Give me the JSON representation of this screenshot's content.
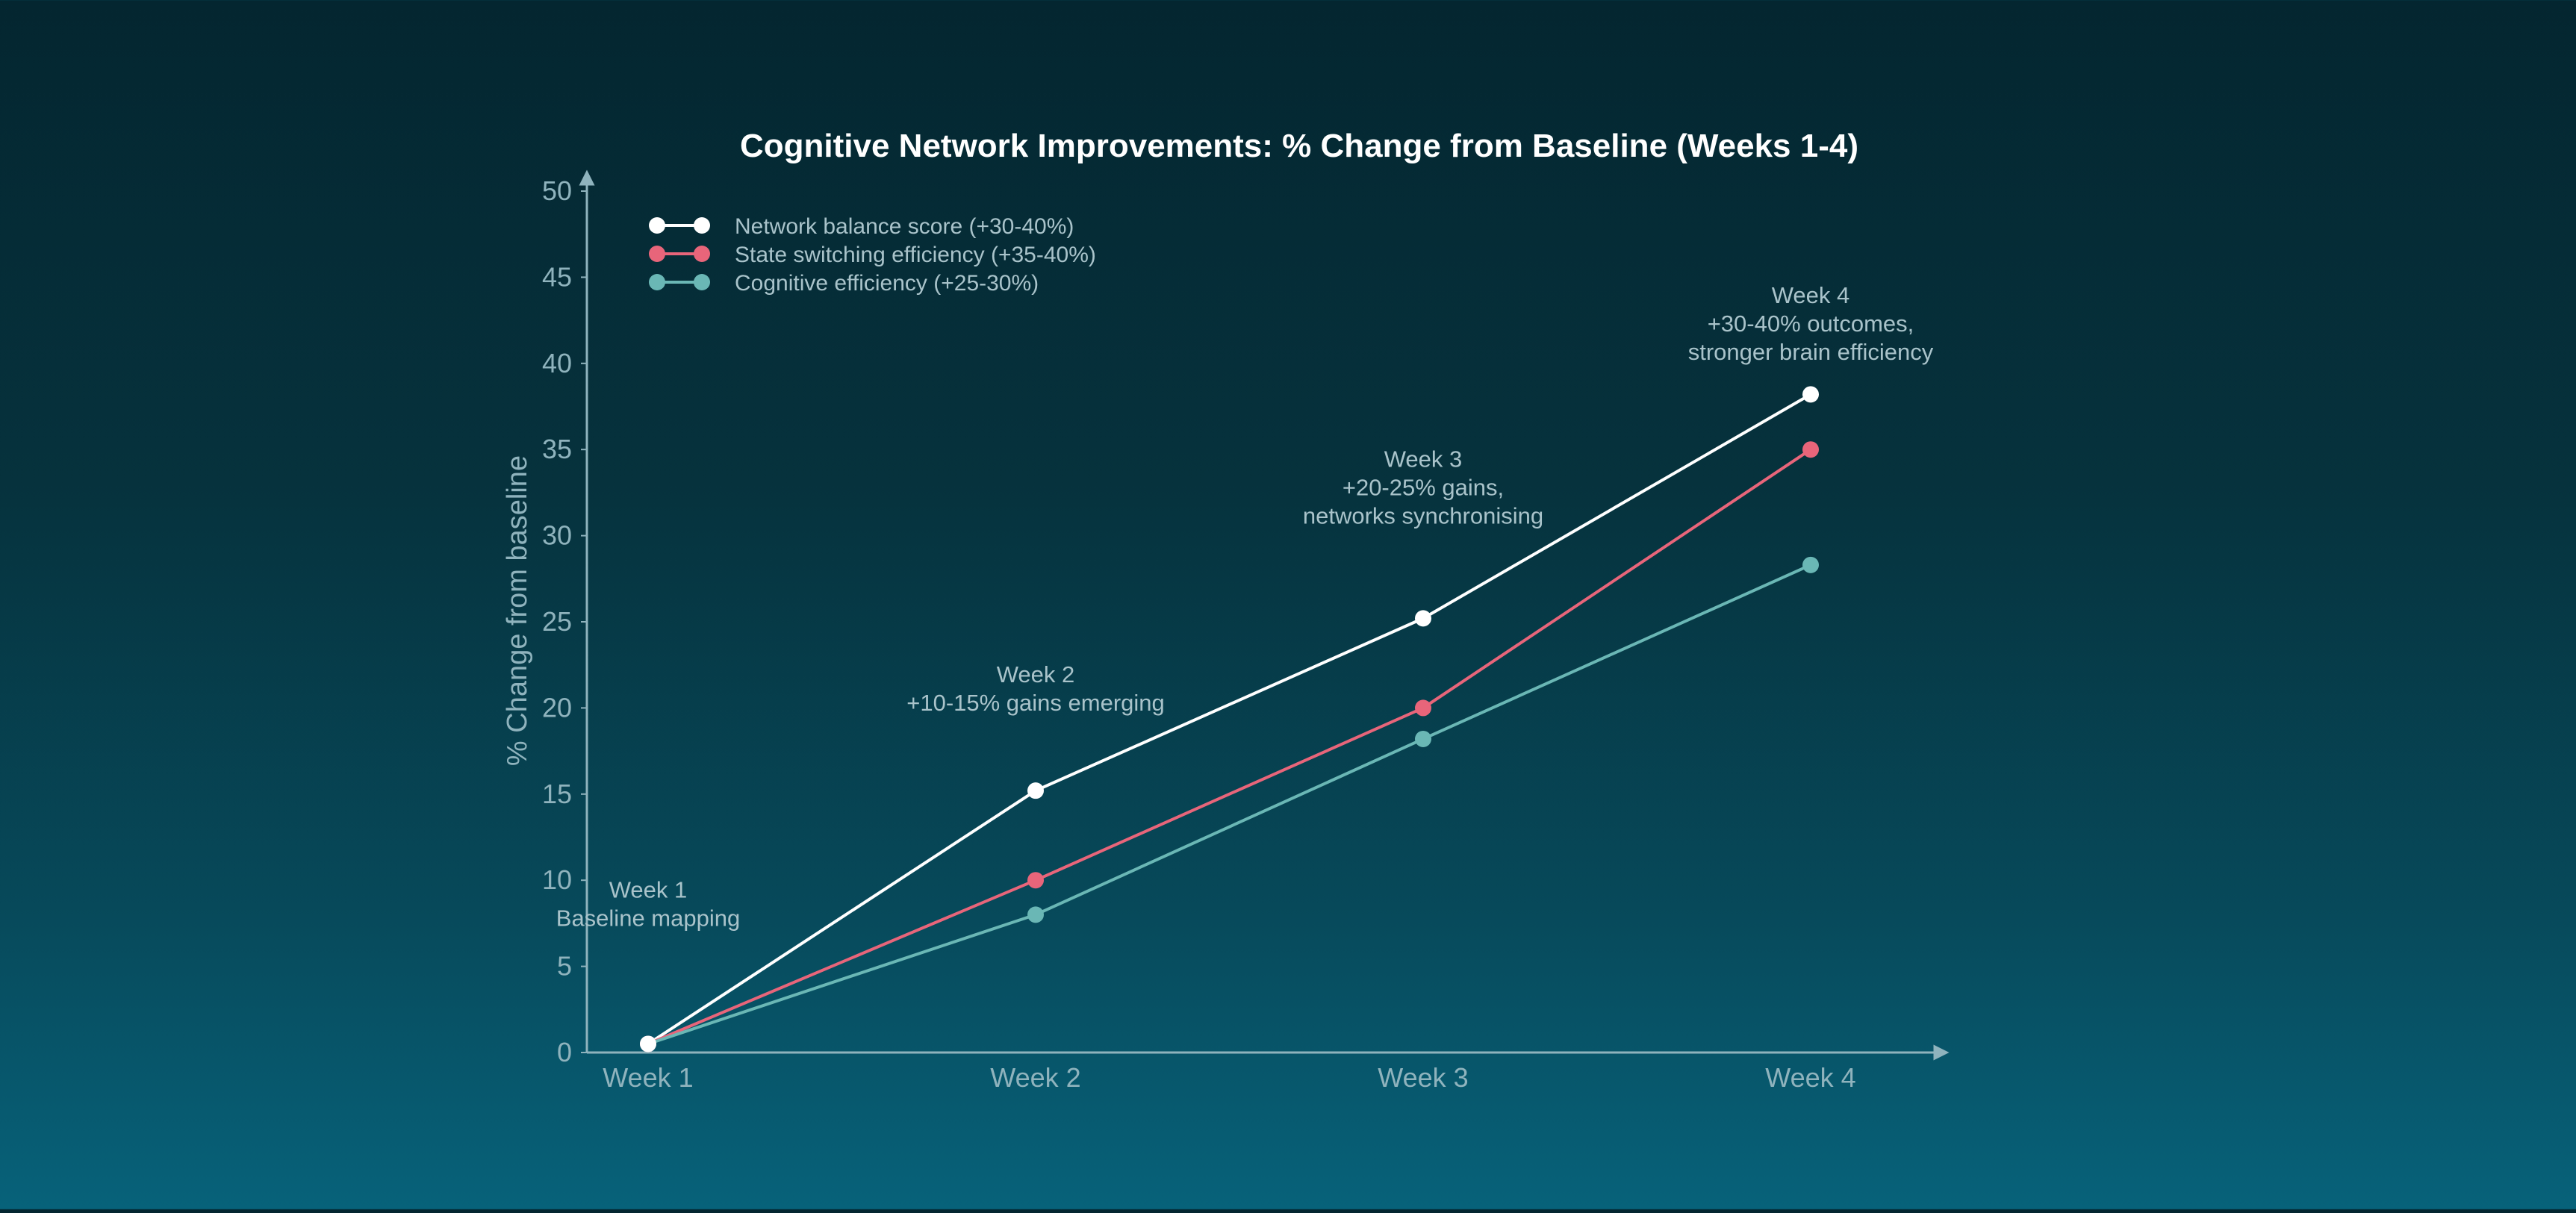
{
  "chart_data": {
    "type": "line",
    "title": "Cognitive Network Improvements: % Change from Baseline (Weeks 1-4)",
    "xlabel": "",
    "ylabel": "% Change from baseline",
    "categories": [
      "Week 1",
      "Week 2",
      "Week 3",
      "Week 4"
    ],
    "ylim": [
      0,
      50
    ],
    "yticks": [
      0,
      5,
      10,
      15,
      20,
      25,
      30,
      35,
      40,
      45,
      50
    ],
    "grid": false,
    "legend_position": "top-left",
    "series": [
      {
        "name": "Network balance score (+30-40%)",
        "color": "#ffffff",
        "values": [
          0.5,
          15.2,
          25.2,
          38.2
        ]
      },
      {
        "name": "State switching efficiency (+35-40%)",
        "color": "#e8657a",
        "values": [
          0.5,
          10,
          20,
          35
        ]
      },
      {
        "name": "Cognitive efficiency (+25-30%)",
        "color": "#6ab7b5",
        "values": [
          0.5,
          8,
          18.2,
          28.3
        ]
      }
    ],
    "annotations": [
      {
        "category": "Week 1",
        "value": 9,
        "lines": [
          "Week 1",
          "Baseline mapping"
        ]
      },
      {
        "category": "Week 2",
        "value": 21.5,
        "lines": [
          "Week 2",
          "+10-15% gains emerging"
        ]
      },
      {
        "category": "Week 3",
        "value": 34,
        "lines": [
          "Week 3",
          "+20-25% gains,",
          "networks synchronising"
        ]
      },
      {
        "category": "Week 4",
        "value": 43.5,
        "lines": [
          "Week 4",
          "+30-40% outcomes,",
          "stronger brain efficiency"
        ]
      }
    ]
  }
}
